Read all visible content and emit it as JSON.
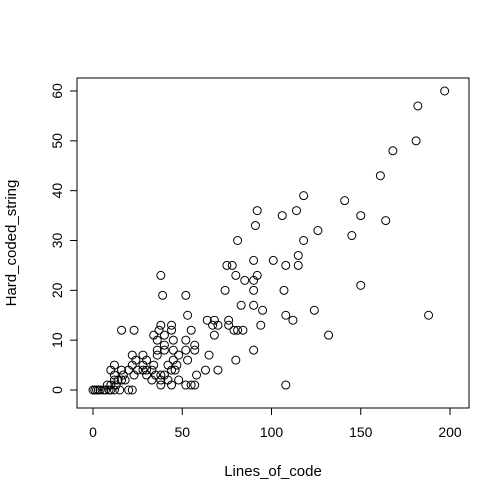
{
  "chart_data": {
    "type": "scatter",
    "xlabel": "Lines_of_code",
    "ylabel": "Hard_coded_string",
    "xlim": [
      0,
      200
    ],
    "ylim": [
      0,
      60
    ],
    "x_ticks": [
      0,
      50,
      100,
      150,
      200
    ],
    "y_ticks": [
      0,
      10,
      20,
      30,
      40,
      50,
      60
    ],
    "grid": false,
    "legend": "none",
    "marker": "open-circle",
    "points": [
      [
        0,
        0
      ],
      [
        1,
        0
      ],
      [
        2,
        0
      ],
      [
        3,
        0
      ],
      [
        4,
        0
      ],
      [
        6,
        0
      ],
      [
        7,
        0
      ],
      [
        9,
        0
      ],
      [
        10,
        0
      ],
      [
        12,
        0
      ],
      [
        15,
        0
      ],
      [
        20,
        0
      ],
      [
        22,
        0
      ],
      [
        8,
        1
      ],
      [
        10,
        1
      ],
      [
        13,
        1
      ],
      [
        38,
        1
      ],
      [
        44,
        1
      ],
      [
        52,
        1
      ],
      [
        55,
        1
      ],
      [
        57,
        1
      ],
      [
        108,
        1
      ],
      [
        12,
        2
      ],
      [
        14,
        2
      ],
      [
        16,
        2
      ],
      [
        18,
        2
      ],
      [
        33,
        2
      ],
      [
        38,
        2
      ],
      [
        42,
        2
      ],
      [
        48,
        2
      ],
      [
        12,
        3
      ],
      [
        17,
        3
      ],
      [
        23,
        3
      ],
      [
        30,
        3
      ],
      [
        35,
        3
      ],
      [
        38,
        3
      ],
      [
        40,
        3
      ],
      [
        58,
        3
      ],
      [
        10,
        4
      ],
      [
        16,
        4
      ],
      [
        20,
        4
      ],
      [
        25,
        4
      ],
      [
        28,
        4
      ],
      [
        30,
        4
      ],
      [
        33,
        4
      ],
      [
        44,
        4
      ],
      [
        46,
        4
      ],
      [
        63,
        4
      ],
      [
        70,
        4
      ],
      [
        12,
        5
      ],
      [
        22,
        5
      ],
      [
        28,
        5
      ],
      [
        34,
        5
      ],
      [
        42,
        5
      ],
      [
        47,
        5
      ],
      [
        24,
        6
      ],
      [
        30,
        6
      ],
      [
        45,
        6
      ],
      [
        53,
        6
      ],
      [
        80,
        6
      ],
      [
        22,
        7
      ],
      [
        28,
        7
      ],
      [
        36,
        7
      ],
      [
        48,
        7
      ],
      [
        65,
        7
      ],
      [
        36,
        8
      ],
      [
        40,
        8
      ],
      [
        45,
        8
      ],
      [
        52,
        8
      ],
      [
        57,
        8
      ],
      [
        90,
        8
      ],
      [
        40,
        9
      ],
      [
        57,
        9
      ],
      [
        36,
        10
      ],
      [
        45,
        10
      ],
      [
        52,
        10
      ],
      [
        34,
        11
      ],
      [
        40,
        11
      ],
      [
        68,
        11
      ],
      [
        132,
        11
      ],
      [
        16,
        12
      ],
      [
        23,
        12
      ],
      [
        37,
        12
      ],
      [
        44,
        12
      ],
      [
        55,
        12
      ],
      [
        79,
        12
      ],
      [
        81,
        12
      ],
      [
        84,
        12
      ],
      [
        38,
        13
      ],
      [
        44,
        13
      ],
      [
        67,
        13
      ],
      [
        70,
        13
      ],
      [
        76,
        13
      ],
      [
        94,
        13
      ],
      [
        64,
        14
      ],
      [
        68,
        14
      ],
      [
        76,
        14
      ],
      [
        112,
        14
      ],
      [
        53,
        15
      ],
      [
        108,
        15
      ],
      [
        188,
        15
      ],
      [
        95,
        16
      ],
      [
        124,
        16
      ],
      [
        83,
        17
      ],
      [
        90,
        17
      ],
      [
        39,
        19
      ],
      [
        52,
        19
      ],
      [
        74,
        20
      ],
      [
        90,
        20
      ],
      [
        107,
        20
      ],
      [
        150,
        21
      ],
      [
        85,
        22
      ],
      [
        90,
        22
      ],
      [
        38,
        23
      ],
      [
        80,
        23
      ],
      [
        92,
        23
      ],
      [
        75,
        25
      ],
      [
        78,
        25
      ],
      [
        108,
        25
      ],
      [
        115,
        25
      ],
      [
        101,
        26
      ],
      [
        90,
        26
      ],
      [
        115,
        27
      ],
      [
        118,
        30
      ],
      [
        81,
        30
      ],
      [
        145,
        31
      ],
      [
        126,
        32
      ],
      [
        91,
        33
      ],
      [
        164,
        34
      ],
      [
        106,
        35
      ],
      [
        150,
        35
      ],
      [
        92,
        36
      ],
      [
        114,
        36
      ],
      [
        141,
        38
      ],
      [
        118,
        39
      ],
      [
        161,
        43
      ],
      [
        168,
        48
      ],
      [
        181,
        50
      ],
      [
        182,
        57
      ],
      [
        197,
        60
      ]
    ]
  }
}
